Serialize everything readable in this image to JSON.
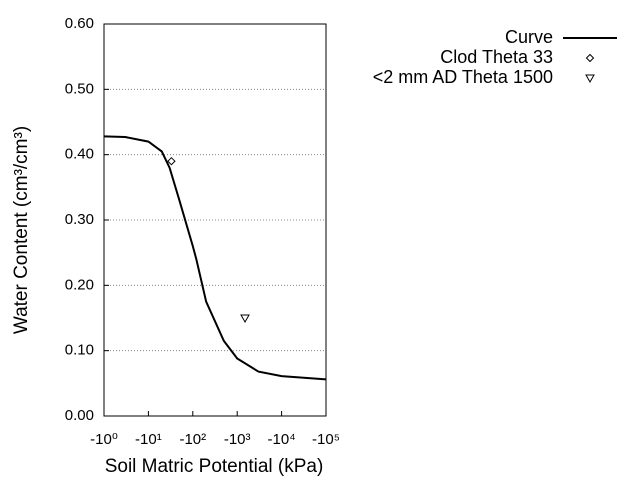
{
  "chart_data": {
    "type": "line",
    "xlabel": "Soil Matric Potential (kPa)",
    "ylabel": "Water Content (cm³/cm³)",
    "xscale": "log",
    "xlim": [
      1,
      100000
    ],
    "ylim": [
      0,
      0.6
    ],
    "xticks": [
      {
        "value": 1,
        "label": "-10⁰"
      },
      {
        "value": 10,
        "label": "-10¹"
      },
      {
        "value": 100,
        "label": "-10²"
      },
      {
        "value": 1000,
        "label": "-10³"
      },
      {
        "value": 10000,
        "label": "-10⁴"
      },
      {
        "value": 100000,
        "label": "-10⁵"
      }
    ],
    "yticks": [
      {
        "value": 0,
        "label": "0.00"
      },
      {
        "value": 0.1,
        "label": "0.10"
      },
      {
        "value": 0.2,
        "label": "0.20"
      },
      {
        "value": 0.3,
        "label": "0.30"
      },
      {
        "value": 0.4,
        "label": "0.40"
      },
      {
        "value": 0.5,
        "label": "0.50"
      },
      {
        "value": 0.6,
        "label": "0.60"
      }
    ],
    "grid": true,
    "legend": "upper right",
    "series": [
      {
        "name": "Curve",
        "color": "#000000",
        "marker": "none",
        "x": [
          1,
          3,
          10,
          20,
          30,
          50,
          100,
          120,
          200,
          500,
          1000,
          3000,
          10000,
          100000
        ],
        "values": [
          0.428,
          0.427,
          0.42,
          0.405,
          0.38,
          0.33,
          0.26,
          0.24,
          0.175,
          0.115,
          0.088,
          0.068,
          0.061,
          0.056
        ]
      },
      {
        "name": "Clod Theta 33",
        "color": "#000000",
        "marker": "diamond",
        "x": [
          33
        ],
        "values": [
          0.39
        ]
      },
      {
        "name": "<2 mm AD Theta 1500",
        "color": "#000000",
        "marker": "triangle-down",
        "x": [
          1500
        ],
        "values": [
          0.15
        ]
      }
    ]
  }
}
